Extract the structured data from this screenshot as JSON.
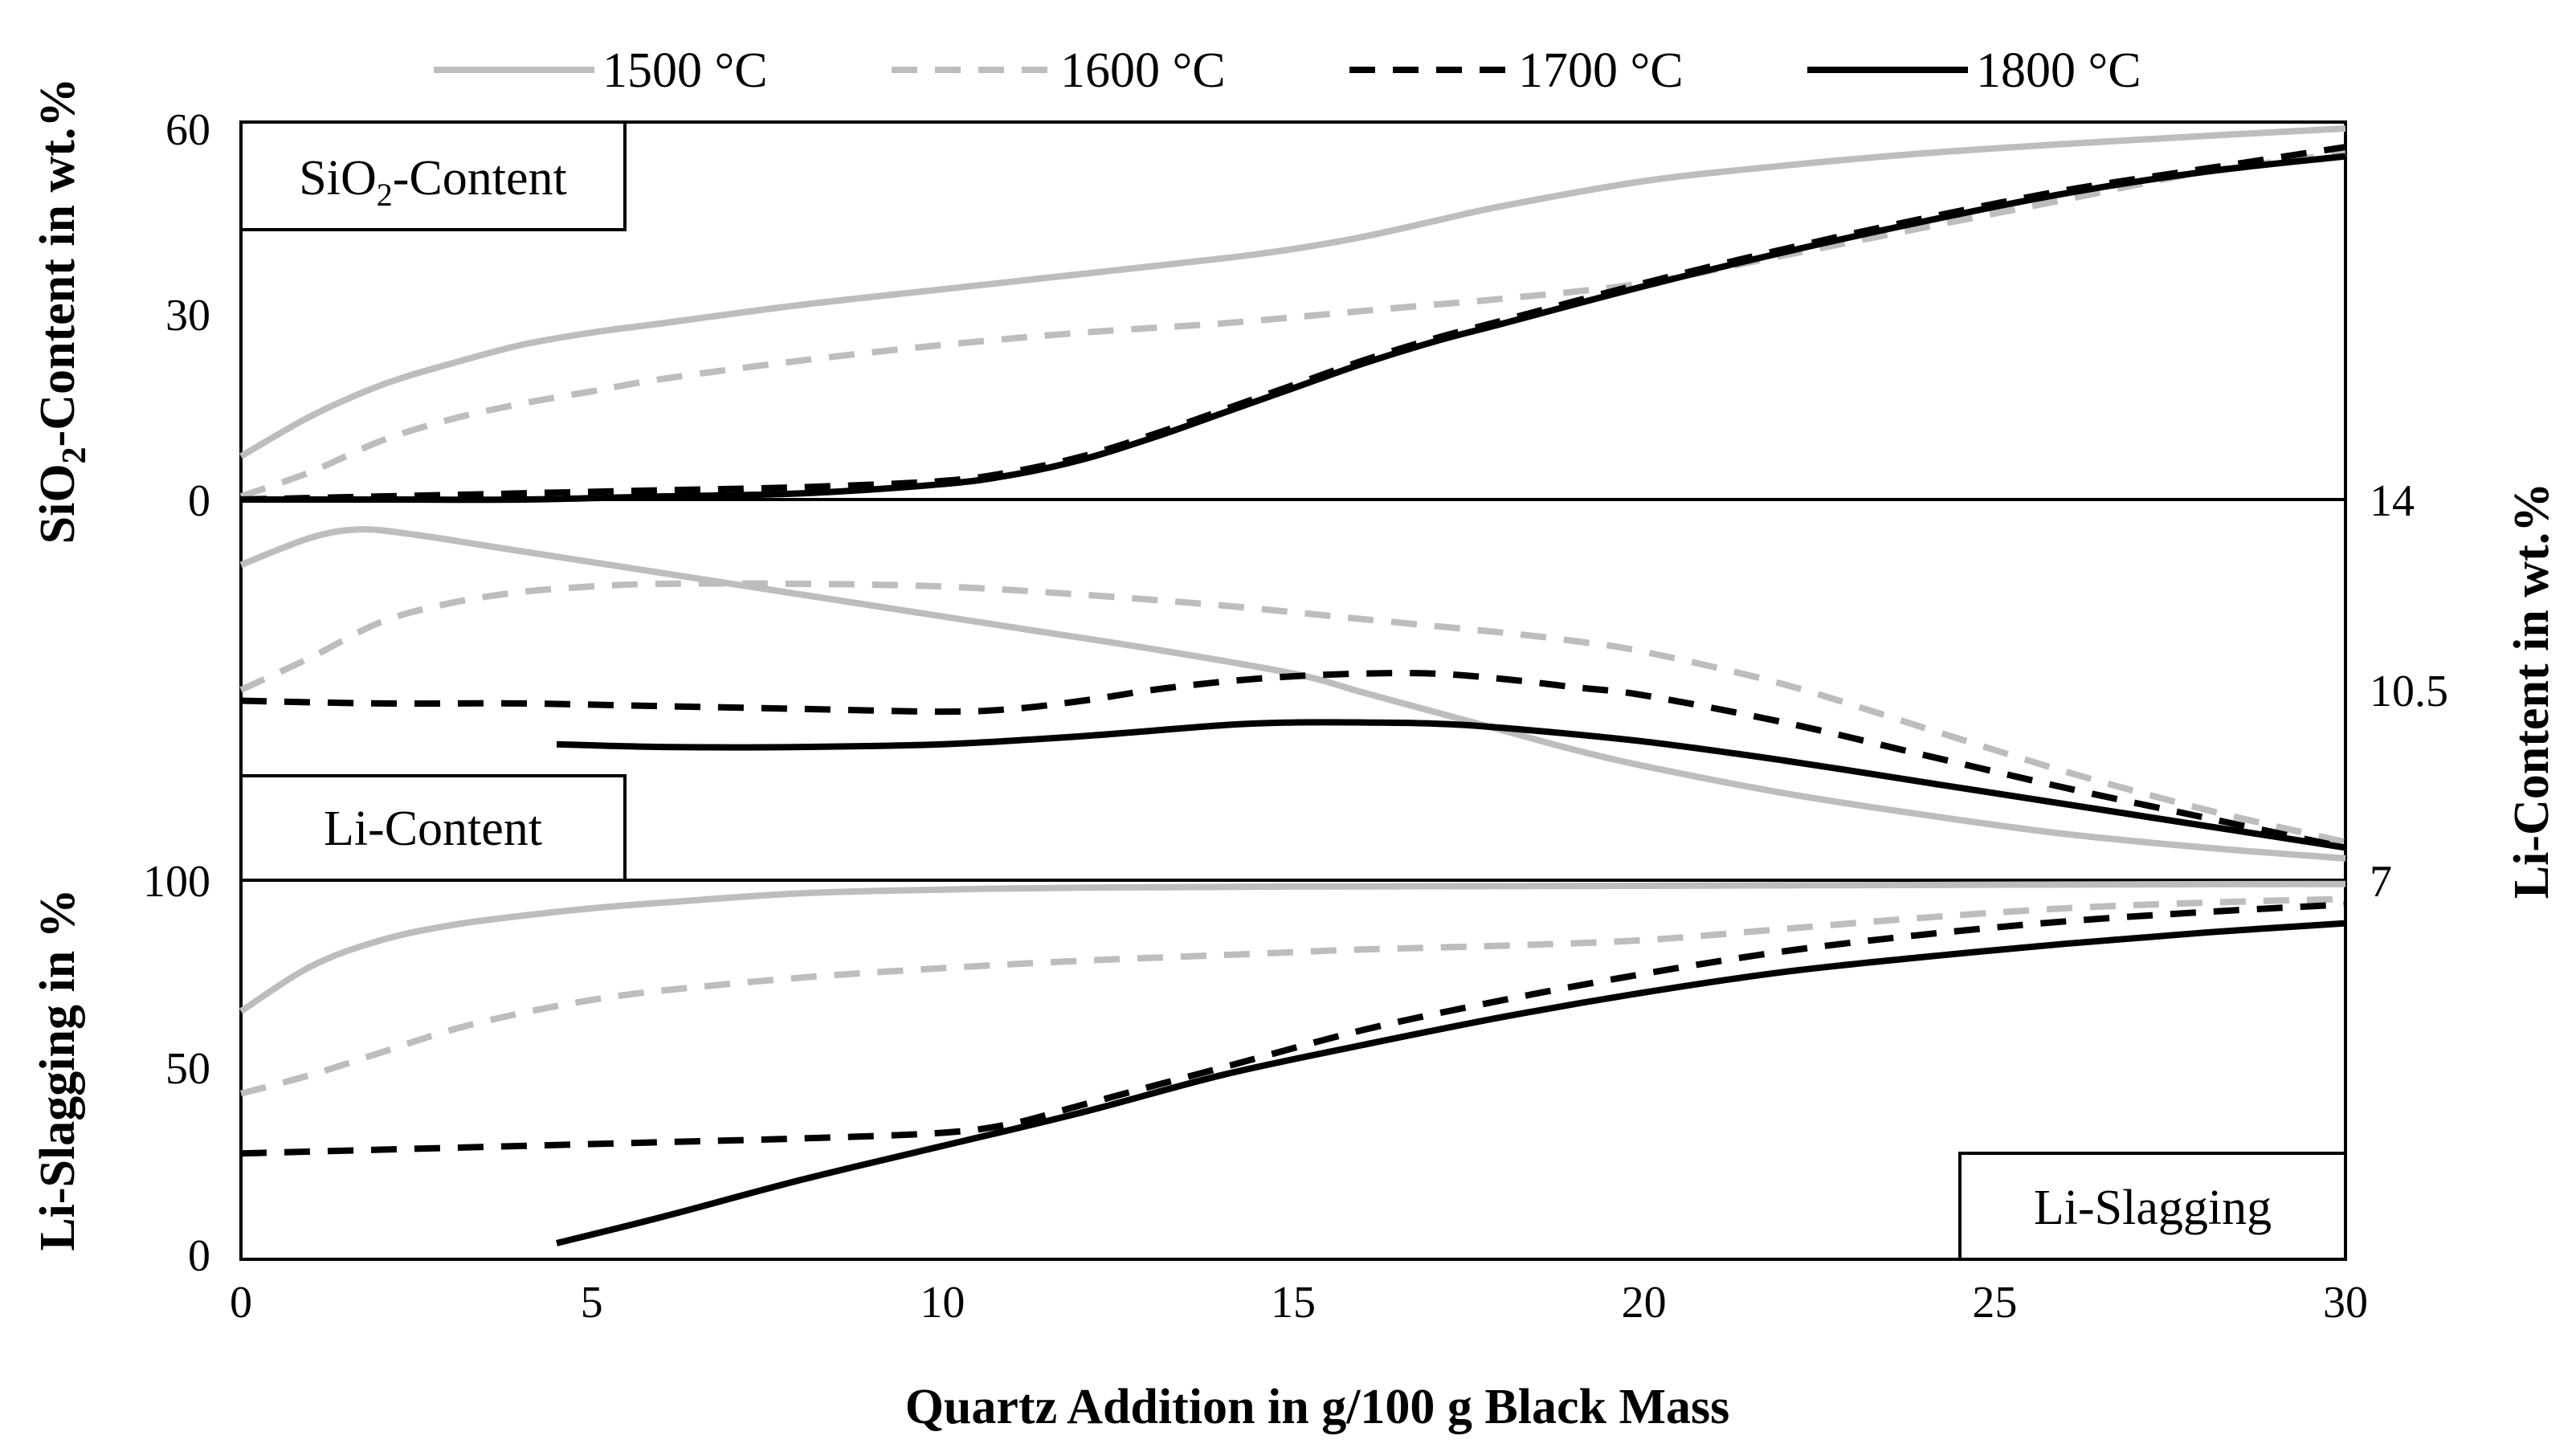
{
  "chart_data": {
    "type": "line",
    "legend": {
      "placement": "top",
      "entries": [
        "1500 °C",
        "1600 °C",
        "1700 °C",
        "1800 °C"
      ]
    },
    "x_axis": {
      "label": "Quartz Addition in g/100 g Black Mass",
      "range": [
        0,
        30
      ],
      "ticks": [
        "0",
        "5",
        "10",
        "15",
        "20",
        "25",
        "30"
      ]
    },
    "panels": [
      {
        "id": "sio2",
        "label": "SiO",
        "label_sub": "2",
        "label_tail": "-Content",
        "y_label": "SiO",
        "y_label_sub": "2",
        "y_label_tail": "-Content in wt.%",
        "y_axis_side": "left",
        "ylim": [
          0,
          60
        ],
        "y_ticks": [
          "0",
          "30",
          "60"
        ],
        "series": [
          {
            "name": "1500 °C",
            "x": [
              0,
              1,
              2,
              3,
              4,
              5,
              6,
              8,
              10,
              12,
              14,
              15,
              16,
              17,
              18,
              20,
              22,
              24,
              26,
              28,
              30
            ],
            "y": [
              7,
              13.5,
              18.5,
              22,
              25,
              27,
              28.5,
              31.5,
              34,
              36.5,
              39,
              40.5,
              42.5,
              45,
              47.5,
              51.5,
              54,
              56,
              57.5,
              58.8,
              60
            ]
          },
          {
            "name": "1600 °C",
            "x": [
              0,
              1,
              2,
              3,
              4,
              5,
              6,
              8,
              10,
              12,
              14,
              16,
              17,
              18,
              20,
              22,
              24,
              26,
              28,
              30
            ],
            "y": [
              0.5,
              4.5,
              9.5,
              13,
              15.5,
              17.5,
              19.5,
              22.5,
              25,
              27,
              28.5,
              30.5,
              31.5,
              32.5,
              35,
              39.5,
              44,
              48.5,
              53,
              56
            ]
          },
          {
            "name": "1700 °C",
            "x": [
              0,
              2,
              4,
              6,
              8,
              10,
              11,
              12,
              13,
              14,
              15,
              16,
              17,
              18,
              20,
              22,
              24,
              26,
              28,
              30
            ],
            "y": [
              0,
              0.5,
              1,
              1.5,
              2,
              3,
              4.5,
              7,
              10.5,
              14.5,
              18.5,
              22.5,
              26,
              29,
              35,
              40.5,
              45.5,
              50,
              53.5,
              57
            ]
          },
          {
            "name": "1800 °C",
            "x": [
              0,
              2,
              4,
              6,
              8,
              10,
              11,
              12,
              13,
              14,
              15,
              16,
              17,
              18,
              20,
              22,
              24,
              26,
              28,
              30
            ],
            "y": [
              0,
              0,
              0,
              0.5,
              1,
              2.5,
              4,
              6.5,
              10,
              14,
              18,
              22,
              25.5,
              28.5,
              34.5,
              40,
              45,
              49.5,
              53,
              55.5
            ]
          }
        ]
      },
      {
        "id": "li",
        "label": "Li-Content",
        "y_label": "Li-Content in wt.%",
        "y_axis_side": "right",
        "ylim": [
          7,
          14
        ],
        "y_ticks": [
          "7",
          "10.5",
          "14"
        ],
        "series": [
          {
            "name": "1500 °C",
            "x": [
              0,
              1,
              1.7,
              2.5,
              3.5,
              5,
              7,
              9,
              11,
              13,
              15,
              16,
              17,
              18,
              19,
              20,
              22,
              24,
              26,
              28,
              30
            ],
            "y": [
              12.8,
              13.3,
              13.45,
              13.35,
              13.15,
              12.85,
              12.45,
              12.05,
              11.65,
              11.25,
              10.8,
              10.45,
              10.1,
              9.75,
              9.4,
              9.1,
              8.6,
              8.2,
              7.85,
              7.6,
              7.4
            ]
          },
          {
            "name": "1600 °C",
            "x": [
              0,
              1,
              2,
              3,
              4,
              5,
              6,
              8,
              10,
              12,
              14,
              16,
              18,
              19,
              20,
              22,
              24,
              26,
              28,
              30
            ],
            "y": [
              10.5,
              11.1,
              11.75,
              12.1,
              12.3,
              12.4,
              12.45,
              12.45,
              12.4,
              12.25,
              12.05,
              11.8,
              11.55,
              11.4,
              11.2,
              10.6,
              9.8,
              9,
              8.3,
              7.7
            ]
          },
          {
            "name": "1700 °C",
            "x": [
              0,
              2,
              4,
              6,
              8,
              10,
              11,
              12,
              13,
              14,
              15,
              16,
              17,
              18,
              19,
              20,
              22,
              24,
              26,
              28,
              30
            ],
            "y": [
              10.3,
              10.25,
              10.25,
              10.2,
              10.15,
              10.1,
              10.15,
              10.3,
              10.5,
              10.65,
              10.75,
              10.8,
              10.8,
              10.7,
              10.55,
              10.4,
              9.9,
              9.3,
              8.7,
              8.15,
              7.6
            ]
          },
          {
            "name": "1800 °C",
            "x": [
              4.5,
              6,
              8,
              10,
              12,
              14,
              15,
              16,
              17,
              18,
              20,
              22,
              24,
              26,
              28,
              30
            ],
            "y": [
              9.5,
              9.45,
              9.45,
              9.5,
              9.65,
              9.85,
              9.9,
              9.9,
              9.88,
              9.8,
              9.55,
              9.2,
              8.8,
              8.4,
              8,
              7.6
            ]
          }
        ]
      },
      {
        "id": "slag",
        "label": "Li-Slagging",
        "y_label": "Li-Slagging in %",
        "y_axis_side": "left",
        "ylim": [
          0,
          100
        ],
        "y_ticks": [
          "0",
          "50",
          "100"
        ],
        "series": [
          {
            "name": "1500 °C",
            "x": [
              0,
              1,
              2,
              3,
              4,
              5,
              6,
              8,
              10,
              12,
              15,
              20,
              25,
              30
            ],
            "y": [
              65,
              77,
              84,
              88,
              90.5,
              92.5,
              94,
              96.5,
              97.5,
              98,
              98.3,
              98.5,
              98.8,
              99
            ]
          },
          {
            "name": "1600 °C",
            "x": [
              0,
              1,
              2,
              3,
              4,
              5,
              6,
              8,
              10,
              12,
              14,
              16,
              18,
              20,
              22,
              24,
              26,
              28,
              30
            ],
            "y": [
              43,
              48,
              54,
              60,
              64.5,
              68,
              70.5,
              74,
              76.5,
              78.5,
              80,
              81.5,
              82.5,
              84,
              87,
              90,
              92.5,
              94,
              95
            ]
          },
          {
            "name": "1700 °C",
            "x": [
              0,
              2,
              4,
              6,
              8,
              10,
              11,
              12,
              14,
              16,
              18,
              20,
              22,
              24,
              26,
              28,
              30
            ],
            "y": [
              27,
              28,
              29,
              30,
              31,
              32.5,
              35,
              40,
              50,
              60,
              68,
              75,
              81,
              85.5,
              89,
              91.5,
              93.5
            ]
          },
          {
            "name": "1800 °C",
            "x": [
              4.5,
              6,
              8,
              10,
              12,
              14,
              16,
              18,
              20,
              22,
              24,
              26,
              28,
              30
            ],
            "y": [
              3,
              10,
              20,
              29,
              38,
              48,
              56,
              63.5,
              70,
              75.5,
              79.5,
              83,
              86,
              88.5
            ]
          }
        ]
      }
    ],
    "colors": {
      "1500 °C": "#bdbdbd",
      "1600 °C": "#bdbdbd",
      "1700 °C": "#000000",
      "1800 °C": "#000000"
    },
    "dashed": {
      "1500 °C": false,
      "1600 °C": true,
      "1700 °C": true,
      "1800 °C": false
    }
  }
}
